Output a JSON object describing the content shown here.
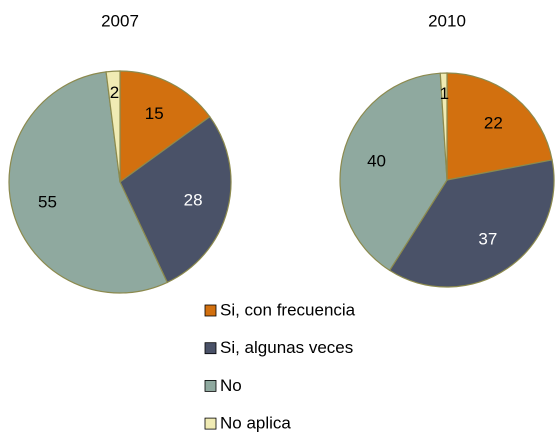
{
  "chart_data": [
    {
      "type": "pie",
      "title": "2007",
      "categories": [
        "Si, con frecuencia",
        "Si, algunas veces",
        "No",
        "No aplica"
      ],
      "values": [
        15,
        28,
        55,
        2
      ],
      "colors": [
        "#d2700f",
        "#4a5268",
        "#8fa99f",
        "#f0ebb4"
      ],
      "label_colors": [
        "#000000",
        "#ffffff",
        "#000000",
        "#000000"
      ]
    },
    {
      "type": "pie",
      "title": "2010",
      "categories": [
        "Si, con frecuencia",
        "Si, algunas veces",
        "No",
        "No aplica"
      ],
      "values": [
        22,
        37,
        40,
        1
      ],
      "colors": [
        "#d2700f",
        "#4a5268",
        "#8fa99f",
        "#f0ebb4"
      ],
      "label_colors": [
        "#000000",
        "#ffffff",
        "#000000",
        "#000000"
      ]
    }
  ]
}
